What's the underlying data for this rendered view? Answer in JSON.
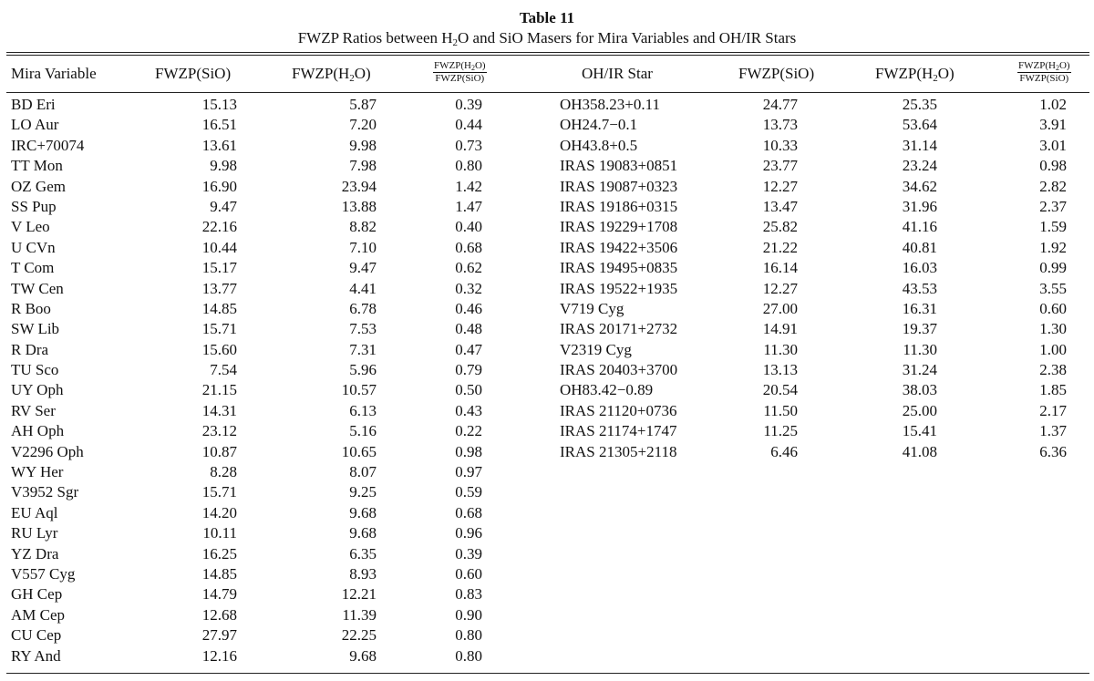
{
  "table": {
    "number": "Table 11",
    "caption_pre": "FWZP Ratios between H",
    "caption_sub": "2",
    "caption_post": "O and SiO Masers for Mira Variables and OH/IR Stars"
  },
  "headers": {
    "mira": "Mira Variable",
    "fwzp_sio": "FWZP(SiO)",
    "fwzp_h2o_pre": "FWZP(H",
    "fwzp_h2o_sub": "2",
    "fwzp_h2o_post": "O)",
    "ratio_num_pre": "FWZP(H",
    "ratio_num_sub": "2",
    "ratio_num_post": "O)",
    "ratio_den": "FWZP(SiO)",
    "ohir": "OH/IR Star"
  },
  "mira_rows": [
    [
      "BD Eri",
      "15.13",
      "5.87",
      "0.39"
    ],
    [
      "LO Aur",
      "16.51",
      "7.20",
      "0.44"
    ],
    [
      "IRC+70074",
      "13.61",
      "9.98",
      "0.73"
    ],
    [
      "TT Mon",
      "9.98",
      "7.98",
      "0.80"
    ],
    [
      "OZ Gem",
      "16.90",
      "23.94",
      "1.42"
    ],
    [
      "SS Pup",
      "9.47",
      "13.88",
      "1.47"
    ],
    [
      "V Leo",
      "22.16",
      "8.82",
      "0.40"
    ],
    [
      "U CVn",
      "10.44",
      "7.10",
      "0.68"
    ],
    [
      "T Com",
      "15.17",
      "9.47",
      "0.62"
    ],
    [
      "TW Cen",
      "13.77",
      "4.41",
      "0.32"
    ],
    [
      "R Boo",
      "14.85",
      "6.78",
      "0.46"
    ],
    [
      "SW Lib",
      "15.71",
      "7.53",
      "0.48"
    ],
    [
      "R Dra",
      "15.60",
      "7.31",
      "0.47"
    ],
    [
      "TU Sco",
      "7.54",
      "5.96",
      "0.79"
    ],
    [
      "UY Oph",
      "21.15",
      "10.57",
      "0.50"
    ],
    [
      "RV Ser",
      "14.31",
      "6.13",
      "0.43"
    ],
    [
      "AH Oph",
      "23.12",
      "5.16",
      "0.22"
    ],
    [
      "V2296 Oph",
      "10.87",
      "10.65",
      "0.98"
    ],
    [
      "WY Her",
      "8.28",
      "8.07",
      "0.97"
    ],
    [
      "V3952 Sgr",
      "15.71",
      "9.25",
      "0.59"
    ],
    [
      "EU Aql",
      "14.20",
      "9.68",
      "0.68"
    ],
    [
      "RU Lyr",
      "10.11",
      "9.68",
      "0.96"
    ],
    [
      "YZ Dra",
      "16.25",
      "6.35",
      "0.39"
    ],
    [
      "V557 Cyg",
      "14.85",
      "8.93",
      "0.60"
    ],
    [
      "GH Cep",
      "14.79",
      "12.21",
      "0.83"
    ],
    [
      "AM Cep",
      "12.68",
      "11.39",
      "0.90"
    ],
    [
      "CU Cep",
      "27.97",
      "22.25",
      "0.80"
    ],
    [
      "RY And",
      "12.16",
      "9.68",
      "0.80"
    ]
  ],
  "ohir_rows": [
    [
      "OH358.23+0.11",
      "24.77",
      "25.35",
      "1.02"
    ],
    [
      "OH24.7−0.1",
      "13.73",
      "53.64",
      "3.91"
    ],
    [
      "OH43.8+0.5",
      "10.33",
      "31.14",
      "3.01"
    ],
    [
      "IRAS 19083+0851",
      "23.77",
      "23.24",
      "0.98"
    ],
    [
      "IRAS 19087+0323",
      "12.27",
      "34.62",
      "2.82"
    ],
    [
      "IRAS 19186+0315",
      "13.47",
      "31.96",
      "2.37"
    ],
    [
      "IRAS 19229+1708",
      "25.82",
      "41.16",
      "1.59"
    ],
    [
      "IRAS 19422+3506",
      "21.22",
      "40.81",
      "1.92"
    ],
    [
      "IRAS 19495+0835",
      "16.14",
      "16.03",
      "0.99"
    ],
    [
      "IRAS 19522+1935",
      "12.27",
      "43.53",
      "3.55"
    ],
    [
      "V719 Cyg",
      "27.00",
      "16.31",
      "0.60"
    ],
    [
      "IRAS 20171+2732",
      "14.91",
      "19.37",
      "1.30"
    ],
    [
      "V2319 Cyg",
      "11.30",
      "11.30",
      "1.00"
    ],
    [
      "IRAS 20403+3700",
      "13.13",
      "31.24",
      "2.38"
    ],
    [
      "OH83.42−0.89",
      "20.54",
      "38.03",
      "1.85"
    ],
    [
      "IRAS 21120+0736",
      "11.50",
      "25.00",
      "2.17"
    ],
    [
      "IRAS 21174+1747",
      "11.25",
      "15.41",
      "1.37"
    ],
    [
      "IRAS 21305+2118",
      "6.46",
      "41.08",
      "6.36"
    ]
  ]
}
